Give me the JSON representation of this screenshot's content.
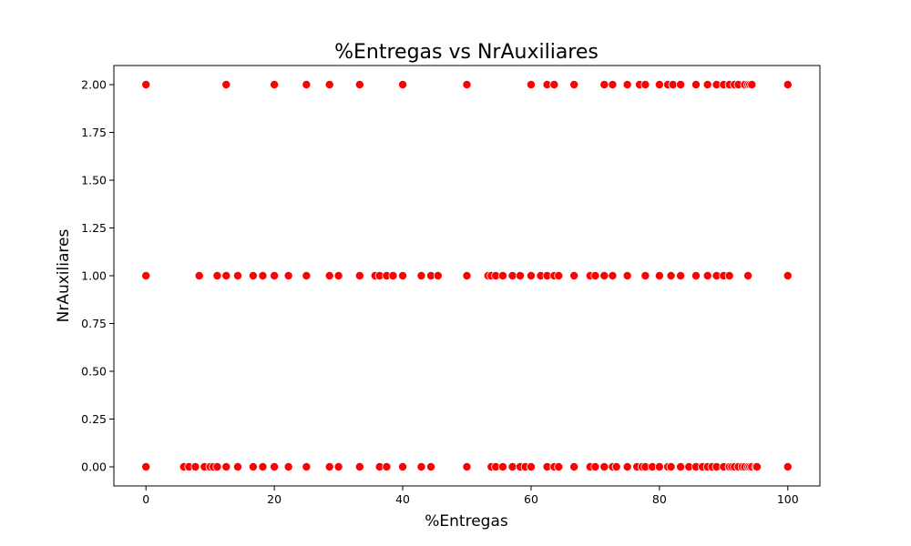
{
  "chart_data": {
    "type": "scatter",
    "title": "%Entregas vs NrAuxiliares",
    "xlabel": "%Entregas",
    "ylabel": "NrAuxiliares",
    "xlim": [
      -5,
      105
    ],
    "ylim": [
      -0.1,
      2.1
    ],
    "xticks": [
      0,
      20,
      40,
      60,
      80,
      100
    ],
    "yticks": [
      0,
      0.25,
      0.5,
      0.75,
      1.0,
      1.25,
      1.5,
      1.75,
      2.0
    ],
    "ytick_labels": [
      "0.00",
      "0.25",
      "0.50",
      "0.75",
      "1.00",
      "1.25",
      "1.50",
      "1.75",
      "2.00"
    ],
    "grid": false,
    "legend": "none",
    "marker_color": "#ff0000",
    "marker_edge": "#ffffff",
    "series": [
      {
        "points": [
          [
            0,
            2
          ],
          [
            12.5,
            2
          ],
          [
            20,
            2
          ],
          [
            25,
            2
          ],
          [
            28.6,
            2
          ],
          [
            33.3,
            2
          ],
          [
            40,
            2
          ],
          [
            50,
            2
          ],
          [
            60,
            2
          ],
          [
            62.5,
            2
          ],
          [
            63.6,
            2
          ],
          [
            66.7,
            2
          ],
          [
            71.4,
            2
          ],
          [
            72.7,
            2
          ],
          [
            75,
            2
          ],
          [
            76.9,
            2
          ],
          [
            77.8,
            2
          ],
          [
            80,
            2
          ],
          [
            81.3,
            2
          ],
          [
            82.1,
            2
          ],
          [
            83.3,
            2
          ],
          [
            85.7,
            2
          ],
          [
            87.5,
            2
          ],
          [
            88.9,
            2
          ],
          [
            90,
            2
          ],
          [
            90.9,
            2
          ],
          [
            91.7,
            2
          ],
          [
            92.3,
            2
          ],
          [
            93.3,
            2
          ],
          [
            93.8,
            2
          ],
          [
            94.1,
            2
          ],
          [
            94.4,
            2
          ],
          [
            100,
            2
          ],
          [
            0,
            1
          ],
          [
            8.3,
            1
          ],
          [
            11.1,
            1
          ],
          [
            12.5,
            1
          ],
          [
            14.3,
            1
          ],
          [
            16.7,
            1
          ],
          [
            18.2,
            1
          ],
          [
            20,
            1
          ],
          [
            22.2,
            1
          ],
          [
            25,
            1
          ],
          [
            28.6,
            1
          ],
          [
            30,
            1
          ],
          [
            33.3,
            1
          ],
          [
            35.7,
            1
          ],
          [
            36.4,
            1
          ],
          [
            37.5,
            1
          ],
          [
            38.5,
            1
          ],
          [
            40,
            1
          ],
          [
            42.9,
            1
          ],
          [
            44.4,
            1
          ],
          [
            45.5,
            1
          ],
          [
            50,
            1
          ],
          [
            53.3,
            1
          ],
          [
            53.8,
            1
          ],
          [
            54.5,
            1
          ],
          [
            55.6,
            1
          ],
          [
            57.1,
            1
          ],
          [
            58.3,
            1
          ],
          [
            60,
            1
          ],
          [
            61.5,
            1
          ],
          [
            62.5,
            1
          ],
          [
            63.6,
            1
          ],
          [
            64.3,
            1
          ],
          [
            66.7,
            1
          ],
          [
            69.2,
            1
          ],
          [
            70,
            1
          ],
          [
            71.4,
            1
          ],
          [
            72.7,
            1
          ],
          [
            75,
            1
          ],
          [
            77.8,
            1
          ],
          [
            80,
            1
          ],
          [
            81.8,
            1
          ],
          [
            83.3,
            1
          ],
          [
            85.7,
            1
          ],
          [
            87.5,
            1
          ],
          [
            88.9,
            1
          ],
          [
            90,
            1
          ],
          [
            90.9,
            1
          ],
          [
            93.8,
            1
          ],
          [
            100,
            1
          ],
          [
            0,
            0
          ],
          [
            5.9,
            0
          ],
          [
            6.7,
            0
          ],
          [
            7.7,
            0
          ],
          [
            9.1,
            0
          ],
          [
            10,
            0
          ],
          [
            10.5,
            0
          ],
          [
            11.1,
            0
          ],
          [
            12.5,
            0
          ],
          [
            14.3,
            0
          ],
          [
            16.7,
            0
          ],
          [
            18.2,
            0
          ],
          [
            20,
            0
          ],
          [
            22.2,
            0
          ],
          [
            25,
            0
          ],
          [
            28.6,
            0
          ],
          [
            30,
            0
          ],
          [
            33.3,
            0
          ],
          [
            36.4,
            0
          ],
          [
            37.5,
            0
          ],
          [
            40,
            0
          ],
          [
            42.9,
            0
          ],
          [
            44.4,
            0
          ],
          [
            50,
            0
          ],
          [
            53.8,
            0
          ],
          [
            54.5,
            0
          ],
          [
            55.6,
            0
          ],
          [
            57.1,
            0
          ],
          [
            58.3,
            0
          ],
          [
            59.1,
            0
          ],
          [
            60,
            0
          ],
          [
            62.5,
            0
          ],
          [
            63.6,
            0
          ],
          [
            64.3,
            0
          ],
          [
            66.7,
            0
          ],
          [
            69.2,
            0
          ],
          [
            70,
            0
          ],
          [
            71.4,
            0
          ],
          [
            72.7,
            0
          ],
          [
            73.3,
            0
          ],
          [
            75,
            0
          ],
          [
            76.5,
            0
          ],
          [
            77.3,
            0
          ],
          [
            77.8,
            0
          ],
          [
            78.9,
            0
          ],
          [
            80,
            0
          ],
          [
            81.3,
            0
          ],
          [
            81.8,
            0
          ],
          [
            83.3,
            0
          ],
          [
            84.6,
            0
          ],
          [
            85.7,
            0
          ],
          [
            86.7,
            0
          ],
          [
            87.5,
            0
          ],
          [
            88.2,
            0
          ],
          [
            88.9,
            0
          ],
          [
            90,
            0
          ],
          [
            90.9,
            0
          ],
          [
            91.3,
            0
          ],
          [
            91.7,
            0
          ],
          [
            92.3,
            0
          ],
          [
            92.9,
            0
          ],
          [
            93.3,
            0
          ],
          [
            93.8,
            0
          ],
          [
            94.1,
            0
          ],
          [
            94.4,
            0
          ],
          [
            95,
            0
          ],
          [
            95.2,
            0
          ],
          [
            100,
            0
          ]
        ]
      }
    ]
  }
}
